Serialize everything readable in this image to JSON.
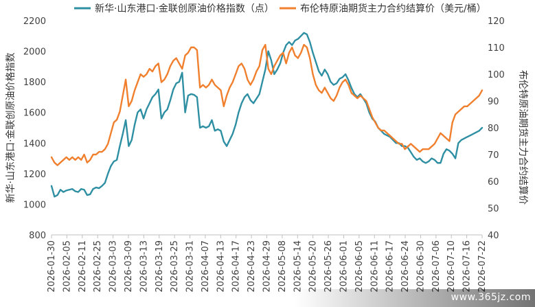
{
  "chart_data": {
    "type": "line",
    "title": "",
    "legend_position": "top",
    "grid": false,
    "ylabel_left": "新华·山东港口·金联创原油价格指数",
    "ylabel_right": "布伦特原油期货主力合约结算价",
    "ylim_left": [
      800,
      2200
    ],
    "ylim_right": [
      40,
      120
    ],
    "yticks_left": [
      800,
      1000,
      1200,
      1400,
      1600,
      1800,
      2000,
      2200
    ],
    "yticks_right": [
      40,
      50,
      60,
      70,
      80,
      90,
      100,
      110,
      120
    ],
    "x_tick_labels": [
      "2026-01-30",
      "2026-02-05",
      "2026-02-11",
      "2026-02-25",
      "2026-03-03",
      "2026-03-09",
      "2026-03-13",
      "2026-03-19",
      "2026-03-25",
      "2026-03-31",
      "2026-04-07",
      "2026-04-13",
      "2026-04-17",
      "2026-04-23",
      "2026-04-29",
      "2026-05-08",
      "2026-05-14",
      "2026-05-20",
      "2026-05-26",
      "2026-06-01",
      "2026-06-05",
      "2026-06-11",
      "2026-06-17",
      "2026-06-24",
      "2026-06-30",
      "2026-07-06",
      "2026-07-10",
      "2026-07-16",
      "2026-07-22"
    ],
    "series": [
      {
        "name": "新华·山东港口·金联创原油价格指数（点）",
        "axis": "left",
        "color": "#2E8FA3",
        "values": [
          1120,
          1050,
          1060,
          1095,
          1080,
          1090,
          1095,
          1100,
          1085,
          1080,
          1100,
          1095,
          1060,
          1065,
          1100,
          1110,
          1105,
          1120,
          1140,
          1200,
          1250,
          1280,
          1290,
          1380,
          1460,
          1550,
          1380,
          1420,
          1520,
          1600,
          1620,
          1560,
          1620,
          1660,
          1700,
          1720,
          1750,
          1560,
          1600,
          1620,
          1680,
          1750,
          1790,
          1800,
          1860,
          1600,
          1710,
          1720,
          1715,
          1700,
          1500,
          1510,
          1500,
          1510,
          1550,
          1480,
          1490,
          1480,
          1410,
          1380,
          1420,
          1460,
          1520,
          1600,
          1660,
          1700,
          1720,
          1680,
          1660,
          1690,
          1720,
          1800,
          1880,
          2000,
          1940,
          1850,
          1880,
          1920,
          1990,
          2040,
          2060,
          2040,
          2070,
          2080,
          2100,
          2120,
          2110,
          2060,
          1990,
          1930,
          1870,
          1840,
          1880,
          1850,
          1800,
          1780,
          1790,
          1820,
          1830,
          1850,
          1810,
          1760,
          1720,
          1700,
          1720,
          1690,
          1660,
          1600,
          1560,
          1540,
          1500,
          1480,
          1460,
          1450,
          1440,
          1420,
          1400,
          1400,
          1380,
          1380,
          1370,
          1340,
          1310,
          1290,
          1300,
          1280,
          1270,
          1280,
          1300,
          1290,
          1270,
          1270,
          1330,
          1360,
          1350,
          1330,
          1300,
          1400,
          1420,
          1430,
          1440,
          1450,
          1460,
          1470,
          1480,
          1500
        ]
      },
      {
        "name": "布伦特原油期货主力合约结算价（美元/桶）",
        "axis": "right",
        "color": "#F07F2E",
        "values": [
          69,
          67,
          66,
          67,
          68,
          69,
          68,
          69,
          68,
          69,
          68,
          70,
          67,
          68,
          70,
          70,
          71,
          71,
          72,
          74,
          78,
          82,
          83,
          86,
          92,
          98,
          88,
          90,
          94,
          97,
          100,
          99,
          100,
          102,
          101,
          103,
          104,
          97,
          98,
          100,
          103,
          105,
          106,
          104,
          102,
          107,
          108,
          110,
          110,
          109,
          95,
          96,
          95,
          96,
          98,
          96,
          95,
          94,
          88,
          92,
          95,
          97,
          100,
          103,
          104,
          102,
          98,
          96,
          98,
          101,
          103,
          109,
          111,
          102,
          100,
          103,
          105,
          107,
          108,
          104,
          108,
          110,
          107,
          106,
          108,
          111,
          110,
          106,
          100,
          96,
          94,
          93,
          95,
          93,
          91,
          90,
          92,
          95,
          97,
          98,
          96,
          93,
          92,
          91,
          92,
          91,
          90,
          87,
          84,
          82,
          80,
          79,
          79,
          78,
          77,
          76,
          75,
          74,
          74,
          72,
          73,
          74,
          73,
          72,
          71,
          72,
          72,
          72,
          73,
          74,
          76,
          78,
          77,
          76,
          75,
          82,
          85,
          86,
          87,
          88,
          88,
          89,
          90,
          91,
          92,
          94
        ]
      }
    ]
  },
  "watermark": "www.365jz.com"
}
